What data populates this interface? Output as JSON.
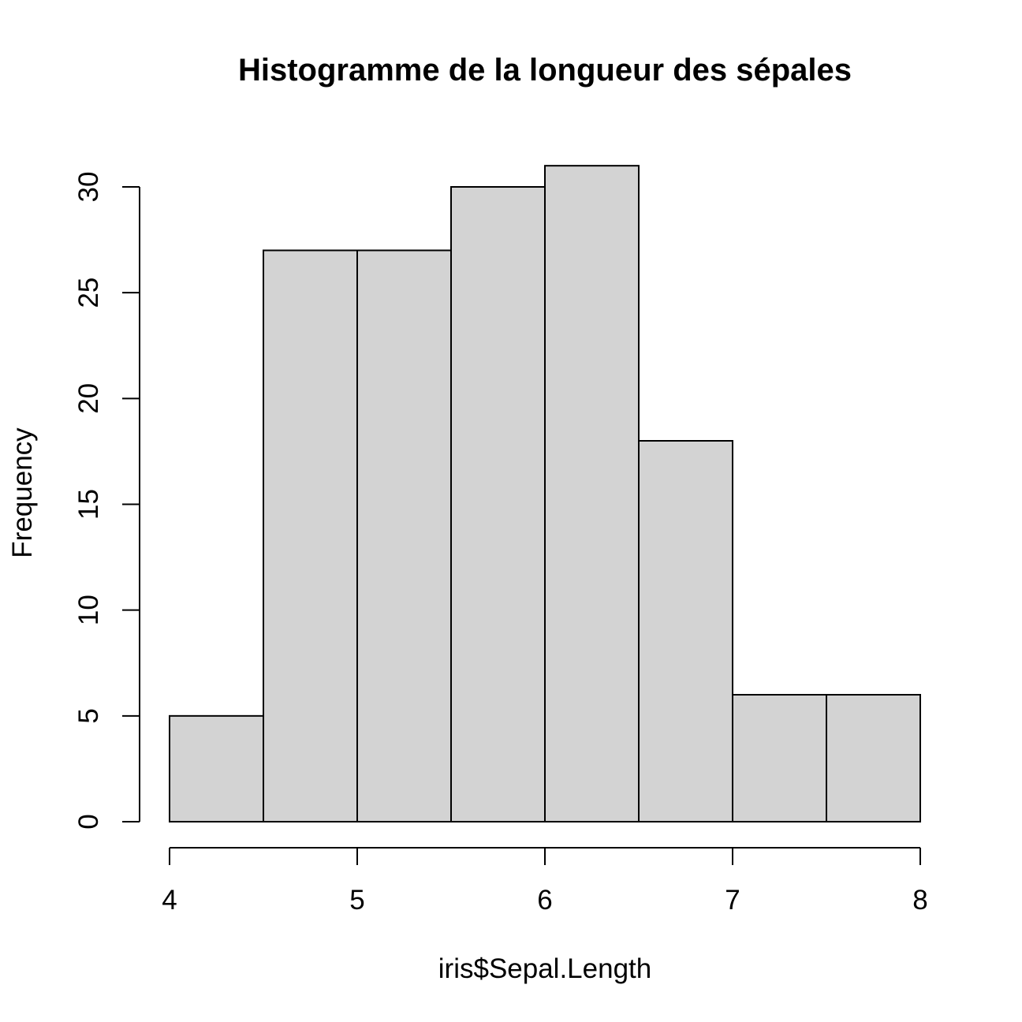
{
  "chart_data": {
    "type": "bar",
    "subtype": "histogram",
    "title": "Histogramme de la longueur des sépales",
    "xlabel": "iris$Sepal.Length",
    "ylabel": "Frequency",
    "bins": [
      {
        "from": 4.0,
        "to": 4.5,
        "count": 5
      },
      {
        "from": 4.5,
        "to": 5.0,
        "count": 27
      },
      {
        "from": 5.0,
        "to": 5.5,
        "count": 27
      },
      {
        "from": 5.5,
        "to": 6.0,
        "count": 30
      },
      {
        "from": 6.0,
        "to": 6.5,
        "count": 31
      },
      {
        "from": 6.5,
        "to": 7.0,
        "count": 18
      },
      {
        "from": 7.0,
        "to": 7.5,
        "count": 6
      },
      {
        "from": 7.5,
        "to": 8.0,
        "count": 6
      }
    ],
    "xlim": [
      4,
      8
    ],
    "ylim": [
      0,
      31
    ],
    "xticks": [
      4,
      5,
      6,
      7,
      8
    ],
    "yticks": [
      0,
      5,
      10,
      15,
      20,
      25,
      30
    ],
    "grid": false,
    "bar_color": "#d3d3d3",
    "edge_color": "#000000"
  }
}
